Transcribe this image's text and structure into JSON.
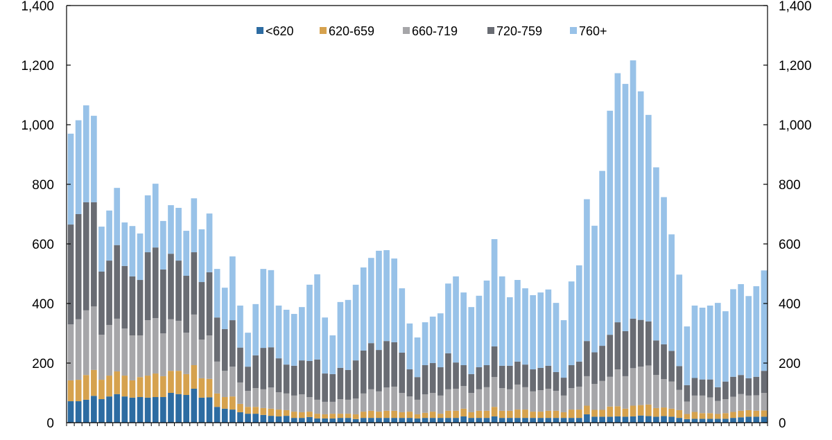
{
  "chart_data": {
    "type": "bar",
    "stacked": true,
    "title": "",
    "xlabel": "",
    "ylabel": "",
    "ylim": [
      0,
      1400
    ],
    "yticks": [
      0,
      200,
      400,
      600,
      800,
      1000,
      1200,
      1400
    ],
    "ytick_labels": [
      "0",
      "200",
      "400",
      "600",
      "800",
      "1,000",
      "1,200",
      "1,400"
    ],
    "secondary_y_axis": true,
    "grid": false,
    "legend_position": "top-center",
    "series": [
      {
        "name": "<620",
        "color": "#2d6ca2",
        "values": [
          72,
          72,
          77,
          90,
          79,
          88,
          96,
          88,
          84,
          86,
          84,
          86,
          86,
          100,
          96,
          93,
          114,
          84,
          85,
          53,
          47,
          44,
          35,
          30,
          30,
          26,
          23,
          21,
          23,
          16,
          16,
          19,
          14,
          14,
          14,
          16,
          16,
          12,
          16,
          16,
          16,
          16,
          16,
          16,
          16,
          14,
          16,
          16,
          16,
          16,
          16,
          21,
          16,
          16,
          16,
          21,
          16,
          16,
          16,
          16,
          16,
          16,
          16,
          16,
          16,
          16,
          16,
          28,
          20,
          20,
          20,
          21,
          20,
          21,
          24,
          22,
          20,
          22,
          20,
          16,
          12,
          13,
          13,
          13,
          13,
          13,
          16,
          18,
          20,
          20,
          20
        ]
      },
      {
        "name": "620-659",
        "color": "#d6a24e",
        "values": [
          70,
          72,
          83,
          87,
          65,
          70,
          76,
          70,
          58,
          67,
          74,
          79,
          70,
          74,
          78,
          70,
          79,
          65,
          62,
          45,
          39,
          44,
          28,
          23,
          23,
          23,
          24,
          23,
          19,
          21,
          19,
          18,
          16,
          14,
          16,
          14,
          14,
          16,
          21,
          24,
          21,
          24,
          24,
          19,
          21,
          14,
          17,
          21,
          14,
          24,
          24,
          26,
          19,
          24,
          24,
          32,
          24,
          24,
          28,
          28,
          21,
          21,
          24,
          24,
          19,
          28,
          28,
          29,
          23,
          23,
          34,
          34,
          27,
          36,
          35,
          39,
          29,
          29,
          27,
          26,
          17,
          23,
          19,
          19,
          16,
          19,
          20,
          22,
          22,
          20,
          21
        ]
      },
      {
        "name": "660-719",
        "color": "#a6a6a9",
        "values": [
          188,
          203,
          217,
          213,
          151,
          170,
          177,
          158,
          151,
          140,
          186,
          186,
          144,
          173,
          168,
          139,
          170,
          130,
          146,
          107,
          88,
          100,
          72,
          54,
          63,
          63,
          71,
          58,
          56,
          54,
          60,
          49,
          47,
          42,
          40,
          49,
          47,
          53,
          61,
          72,
          68,
          78,
          81,
          65,
          51,
          49,
          62,
          63,
          61,
          72,
          74,
          76,
          65,
          72,
          79,
          100,
          76,
          72,
          84,
          75,
          68,
          72,
          74,
          67,
          56,
          72,
          77,
          99,
          87,
          97,
          100,
          124,
          109,
          126,
          129,
          131,
          111,
          95,
          91,
          68,
          42,
          55,
          59,
          53,
          44,
          47,
          51,
          56,
          49,
          52,
          59
        ]
      },
      {
        "name": "720-759",
        "color": "#696c73",
        "values": [
          335,
          353,
          363,
          350,
          212,
          216,
          247,
          210,
          198,
          186,
          228,
          237,
          214,
          220,
          202,
          191,
          209,
          193,
          212,
          148,
          140,
          156,
          117,
          81,
          110,
          139,
          135,
          114,
          97,
          100,
          114,
          121,
          135,
          95,
          93,
          105,
          100,
          128,
          144,
          155,
          139,
          156,
          149,
          135,
          91,
          76,
          98,
          100,
          95,
          121,
          88,
          70,
          63,
          74,
          74,
          103,
          75,
          79,
          77,
          76,
          74,
          75,
          77,
          63,
          60,
          77,
          84,
          118,
          106,
          118,
          141,
          158,
          151,
          166,
          157,
          148,
          116,
          117,
          103,
          80,
          55,
          59,
          54,
          60,
          46,
          59,
          67,
          64,
          58,
          62,
          74
        ]
      },
      {
        "name": "760+",
        "color": "#98c2e8",
        "values": [
          305,
          315,
          325,
          290,
          151,
          168,
          192,
          146,
          169,
          156,
          191,
          214,
          163,
          163,
          177,
          151,
          181,
          177,
          197,
          163,
          139,
          214,
          141,
          114,
          172,
          265,
          259,
          177,
          184,
          174,
          179,
          256,
          286,
          188,
          130,
          221,
          235,
          254,
          279,
          286,
          333,
          305,
          281,
          216,
          154,
          133,
          144,
          156,
          181,
          234,
          289,
          244,
          225,
          240,
          284,
          360,
          300,
          230,
          274,
          256,
          249,
          253,
          256,
          232,
          193,
          281,
          323,
          476,
          425,
          587,
          752,
          836,
          830,
          867,
          767,
          693,
          581,
          494,
          391,
          307,
          197,
          243,
          241,
          248,
          283,
          236,
          294,
          305,
          276,
          304,
          337
        ]
      }
    ]
  }
}
